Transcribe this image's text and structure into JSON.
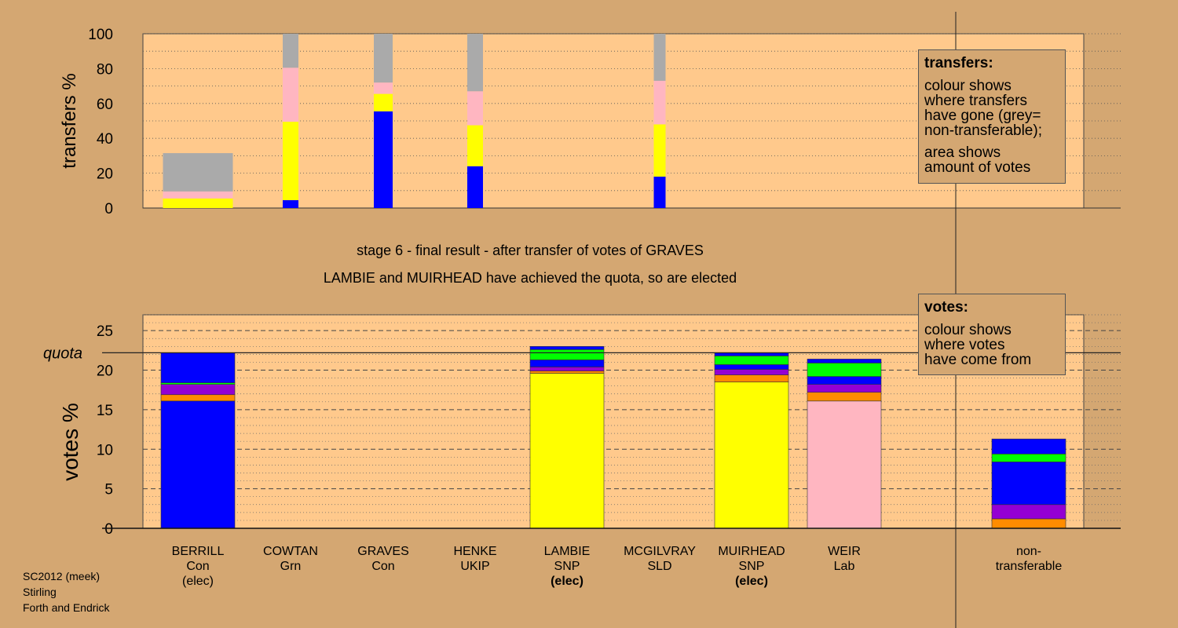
{
  "chart_data": [
    {
      "type": "bar",
      "stacked": true,
      "title": "",
      "ylabel": "transfers %",
      "ylim": [
        0,
        100
      ],
      "yticks": [
        0,
        20,
        40,
        60,
        80,
        100
      ],
      "grid": true,
      "categories": [
        "BERRILL",
        "COWTAN",
        "GRAVES",
        "HENKE",
        "LAMBIE",
        "MCGILVRAY",
        "MUIRHEAD",
        "WEIR"
      ],
      "bar_widths_share": [
        1.0,
        0.22,
        0.26,
        0.22,
        0,
        0.16,
        0,
        0
      ],
      "bars": [
        {
          "category": "BERRILL",
          "segments": [
            {
              "color": "#ffff00",
              "value": 5.5
            },
            {
              "color": "#ffb6c1",
              "value": 4
            },
            {
              "color": "#aaaaaa",
              "value": 22
            }
          ]
        },
        {
          "category": "COWTAN",
          "segments": [
            {
              "color": "#0000ff",
              "value": 4.5
            },
            {
              "color": "#ffff00",
              "value": 45
            },
            {
              "color": "#ffb6c1",
              "value": 31
            },
            {
              "color": "#aaaaaa",
              "value": 19.5
            }
          ]
        },
        {
          "category": "GRAVES",
          "segments": [
            {
              "color": "#0000ff",
              "value": 55.5
            },
            {
              "color": "#ffff00",
              "value": 10
            },
            {
              "color": "#ffb6c1",
              "value": 6.5
            },
            {
              "color": "#aaaaaa",
              "value": 28
            }
          ]
        },
        {
          "category": "HENKE",
          "segments": [
            {
              "color": "#0000ff",
              "value": 24
            },
            {
              "color": "#ffff00",
              "value": 23.5
            },
            {
              "color": "#ffb6c1",
              "value": 19.5
            },
            {
              "color": "#aaaaaa",
              "value": 33
            }
          ]
        },
        {
          "category": "MCGILVRAY",
          "segments": [
            {
              "color": "#0000ff",
              "value": 18
            },
            {
              "color": "#ffff00",
              "value": 30
            },
            {
              "color": "#ffb6c1",
              "value": 25
            },
            {
              "color": "#aaaaaa",
              "value": 27
            }
          ]
        }
      ],
      "legend": {
        "title": "transfers:",
        "lines1": [
          "colour shows",
          "where transfers",
          "have gone (grey=",
          "non-transferable);"
        ],
        "lines2": [
          "area shows",
          "amount of votes"
        ]
      }
    },
    {
      "type": "bar",
      "stacked": true,
      "title": "",
      "ylabel": "votes %",
      "ylim": [
        0,
        27
      ],
      "yticks": [
        0,
        5,
        10,
        15,
        20,
        25
      ],
      "grid": true,
      "quota": 22.2,
      "quota_label": "quota",
      "categories": [
        "BERRILL",
        "COWTAN",
        "GRAVES",
        "HENKE",
        "LAMBIE",
        "MCGILVRAY",
        "MUIRHEAD",
        "WEIR",
        "non-transferable"
      ],
      "bars": [
        {
          "category": "BERRILL",
          "segments": [
            {
              "color": "#0000ff",
              "value": 16.1
            },
            {
              "color": "#ff8c00",
              "value": 0.8
            },
            {
              "color": "#9400d3",
              "value": 1.3
            },
            {
              "color": "#00ff00",
              "value": 0.2
            },
            {
              "color": "#0000ff",
              "value": 3.8
            }
          ]
        },
        {
          "category": "COWTAN",
          "segments": []
        },
        {
          "category": "GRAVES",
          "segments": []
        },
        {
          "category": "HENKE",
          "segments": []
        },
        {
          "category": "LAMBIE",
          "segments": [
            {
              "color": "#ffff00",
              "value": 19.6
            },
            {
              "color": "#ff8c00",
              "value": 0.3
            },
            {
              "color": "#9400d3",
              "value": 0.5
            },
            {
              "color": "#0000ff",
              "value": 0.9
            },
            {
              "color": "#00ff00",
              "value": 1.3
            },
            {
              "color": "#0000ff",
              "value": 0.4
            }
          ]
        },
        {
          "category": "MCGILVRAY",
          "segments": []
        },
        {
          "category": "MUIRHEAD",
          "segments": [
            {
              "color": "#ffff00",
              "value": 18.5
            },
            {
              "color": "#ff8c00",
              "value": 0.9
            },
            {
              "color": "#9400d3",
              "value": 0.7
            },
            {
              "color": "#0000ff",
              "value": 0.6
            },
            {
              "color": "#00ff00",
              "value": 1.1
            },
            {
              "color": "#0000ff",
              "value": 0.4
            }
          ]
        },
        {
          "category": "WEIR",
          "segments": [
            {
              "color": "#ffb6c1",
              "value": 16.1
            },
            {
              "color": "#ff8c00",
              "value": 1.1
            },
            {
              "color": "#9400d3",
              "value": 1.0
            },
            {
              "color": "#0000ff",
              "value": 1.0
            },
            {
              "color": "#00ff00",
              "value": 1.7
            },
            {
              "color": "#0000ff",
              "value": 0.5
            }
          ]
        },
        {
          "category": "non-transferable",
          "segments": [
            {
              "color": "#ff8c00",
              "value": 1.2
            },
            {
              "color": "#9400d3",
              "value": 1.8
            },
            {
              "color": "#0000ff",
              "value": 5.4
            },
            {
              "color": "#00ff00",
              "value": 1.0
            },
            {
              "color": "#0000ff",
              "value": 1.9
            }
          ]
        }
      ],
      "category_labels": [
        {
          "name": "BERRILL",
          "party": "Con",
          "status": "(elec)",
          "status_bold": false
        },
        {
          "name": "COWTAN",
          "party": "Grn",
          "status": "",
          "status_bold": false
        },
        {
          "name": "GRAVES",
          "party": "Con",
          "status": "",
          "status_bold": false
        },
        {
          "name": "HENKE",
          "party": "UKIP",
          "status": "",
          "status_bold": false
        },
        {
          "name": "LAMBIE",
          "party": "SNP",
          "status": "(elec)",
          "status_bold": true
        },
        {
          "name": "MCGILVRAY",
          "party": "SLD",
          "status": "",
          "status_bold": false
        },
        {
          "name": "MUIRHEAD",
          "party": "SNP",
          "status": "(elec)",
          "status_bold": true
        },
        {
          "name": "WEIR",
          "party": "Lab",
          "status": "",
          "status_bold": false
        },
        {
          "name": "non-",
          "party": "transferable",
          "status": "",
          "status_bold": false
        }
      ],
      "legend": {
        "title": "votes:",
        "lines1": [
          "colour shows",
          "where votes",
          "have come from"
        ],
        "lines2": []
      }
    }
  ],
  "captions": {
    "stage": "stage 6 - final result - after transfer of votes of GRAVES",
    "result": "LAMBIE and MUIRHEAD have achieved the quota, so are elected"
  },
  "footer": {
    "line1": "SC2012 (meek)",
    "line2": "Stirling",
    "line3": "Forth and Endrick"
  },
  "colors": {
    "background": "#d4a772",
    "plot_area": "#ffc98c"
  }
}
